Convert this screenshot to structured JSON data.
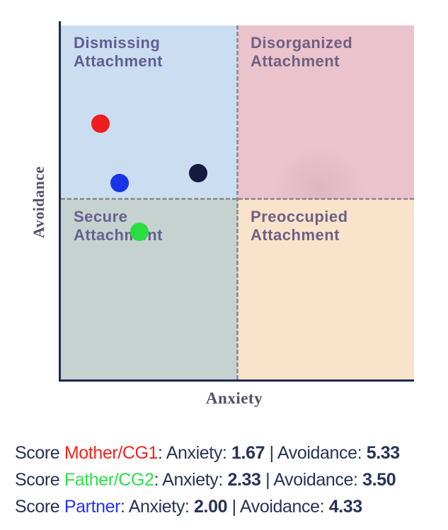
{
  "chart": {
    "y_axis_label": "Avoidance",
    "x_axis_label": "Anxiety",
    "quadrants": [
      {
        "id": "dismissing",
        "label": "Dismissing\nAttachment",
        "bg": "#cbddf1",
        "label_color": "#615d93"
      },
      {
        "id": "disorganized",
        "label": "Disorganized\nAttachment",
        "bg": "#eac3cd",
        "label_color": "#6f6080"
      },
      {
        "id": "secure",
        "label": "Secure\nAttachment",
        "bg": "#c6d2d0",
        "label_color": "#675f90"
      },
      {
        "id": "preoccupied",
        "label": "Preoccupied\nAttachment",
        "bg": "#fae3cb",
        "label_color": "#6e6085"
      }
    ],
    "axis_color": "#1c2b4a",
    "divider_color": "#7d7a83"
  },
  "chart_data": {
    "type": "scatter",
    "xlabel": "Anxiety",
    "ylabel": "Avoidance",
    "xlim": [
      1,
      7
    ],
    "ylim": [
      1,
      7
    ],
    "grid": false,
    "legend_position": "none",
    "quadrant_labels": [
      "Dismissing Attachment",
      "Disorganized Attachment",
      "Secure Attachment",
      "Preoccupied Attachment"
    ],
    "points": [
      {
        "name": "Mother/CG1",
        "color": "#ee1d20",
        "anxiety": 1.67,
        "avoidance": 5.33
      },
      {
        "name": "Partner",
        "color": "#1b34ea",
        "anxiety": 2.0,
        "avoidance": 4.33
      },
      {
        "name": "unlabeled-dark-navy",
        "color": "#141b3e",
        "anxiety": 3.33,
        "avoidance": 4.5
      },
      {
        "name": "Father/CG2",
        "color": "#2ade3e",
        "anxiety": 2.33,
        "avoidance": 3.5
      }
    ]
  },
  "scores": {
    "colors": {
      "navy": "#263357",
      "red": "#f3251f",
      "green": "#2ee14c",
      "blue": "#2433ee"
    },
    "rows": [
      {
        "id": "mother",
        "segments": [
          {
            "t": "Score ",
            "c": "navy"
          },
          {
            "t": "Mother/CG1",
            "c": "red"
          },
          {
            "t": ": Anxiety: ",
            "c": "navy"
          },
          {
            "t": "1.67",
            "c": "navy",
            "b": true
          },
          {
            "t": " | Avoidance: ",
            "c": "navy"
          },
          {
            "t": "5.33",
            "c": "navy",
            "b": true
          }
        ]
      },
      {
        "id": "father",
        "segments": [
          {
            "t": "Score ",
            "c": "navy"
          },
          {
            "t": "Father/CG2",
            "c": "green"
          },
          {
            "t": ": Anxiety: ",
            "c": "navy"
          },
          {
            "t": "2.33",
            "c": "navy",
            "b": true
          },
          {
            "t": " | Avoidance: ",
            "c": "navy"
          },
          {
            "t": "3.50",
            "c": "navy",
            "b": true
          }
        ]
      },
      {
        "id": "partner",
        "segments": [
          {
            "t": "Score ",
            "c": "navy"
          },
          {
            "t": "Partner",
            "c": "blue"
          },
          {
            "t": ": Anxiety: ",
            "c": "navy"
          },
          {
            "t": "2.00",
            "c": "navy",
            "b": true
          },
          {
            "t": " | Avoidance: ",
            "c": "navy"
          },
          {
            "t": "4.33",
            "c": "navy",
            "b": true
          }
        ]
      }
    ]
  }
}
